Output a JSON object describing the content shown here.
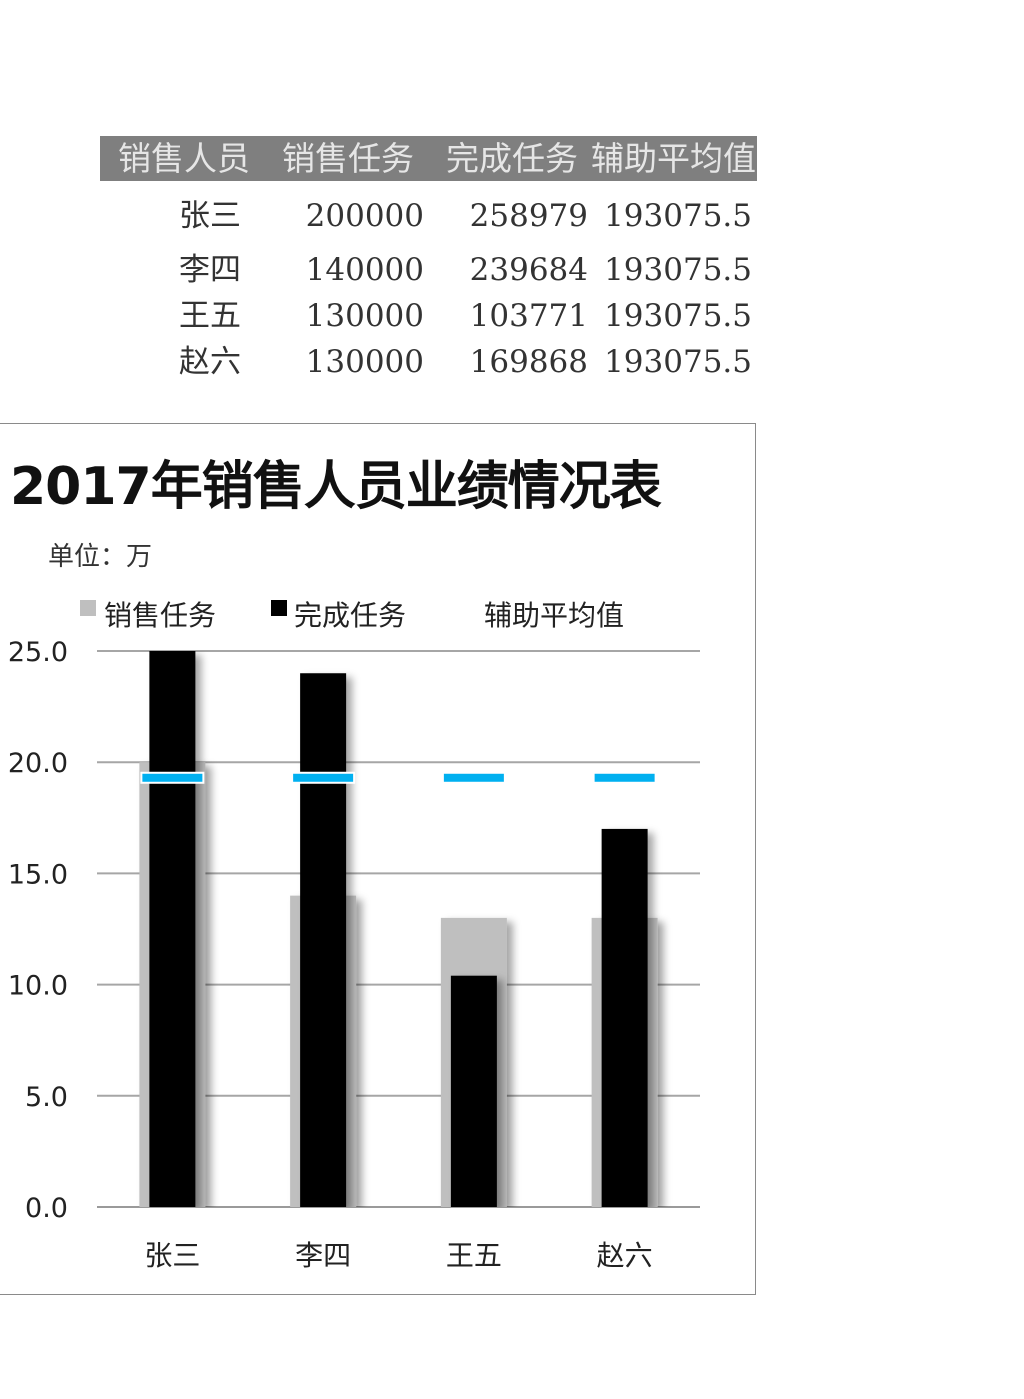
{
  "table": {
    "headers": [
      "销售人员",
      "销售任务",
      "完成任务",
      "辅助平均值"
    ],
    "rows": [
      {
        "name": "张三",
        "task": "200000",
        "done": "258979",
        "avg": "193075.5"
      },
      {
        "name": "李四",
        "task": "140000",
        "done": "239684",
        "avg": "193075.5"
      },
      {
        "name": "王五",
        "task": "130000",
        "done": "103771",
        "avg": "193075.5"
      },
      {
        "name": "赵六",
        "task": "130000",
        "done": "169868",
        "avg": "193075.5"
      }
    ]
  },
  "chart_data": {
    "type": "bar",
    "title": "2017年销售人员业绩情况表",
    "subtitle": "单位：万",
    "categories": [
      "张三",
      "李四",
      "王五",
      "赵六"
    ],
    "series": [
      {
        "name": "销售任务",
        "kind": "bar",
        "color": "#bfbfbf",
        "values": [
          20.0,
          14.0,
          13.0,
          13.0
        ]
      },
      {
        "name": "完成任务",
        "kind": "bar",
        "color": "#000000",
        "values": [
          25.9,
          24.0,
          10.4,
          17.0
        ]
      },
      {
        "name": "辅助平均值",
        "kind": "marker",
        "color": "#00b0f0",
        "values": [
          19.3,
          19.3,
          19.3,
          19.3
        ]
      }
    ],
    "ylim": [
      0,
      25
    ],
    "yticks": [
      "0.0",
      "5.0",
      "10.0",
      "15.0",
      "20.0",
      "25.0"
    ],
    "ytick_values": [
      0,
      5,
      10,
      15,
      20,
      25
    ],
    "grid": true,
    "legend": "top"
  }
}
